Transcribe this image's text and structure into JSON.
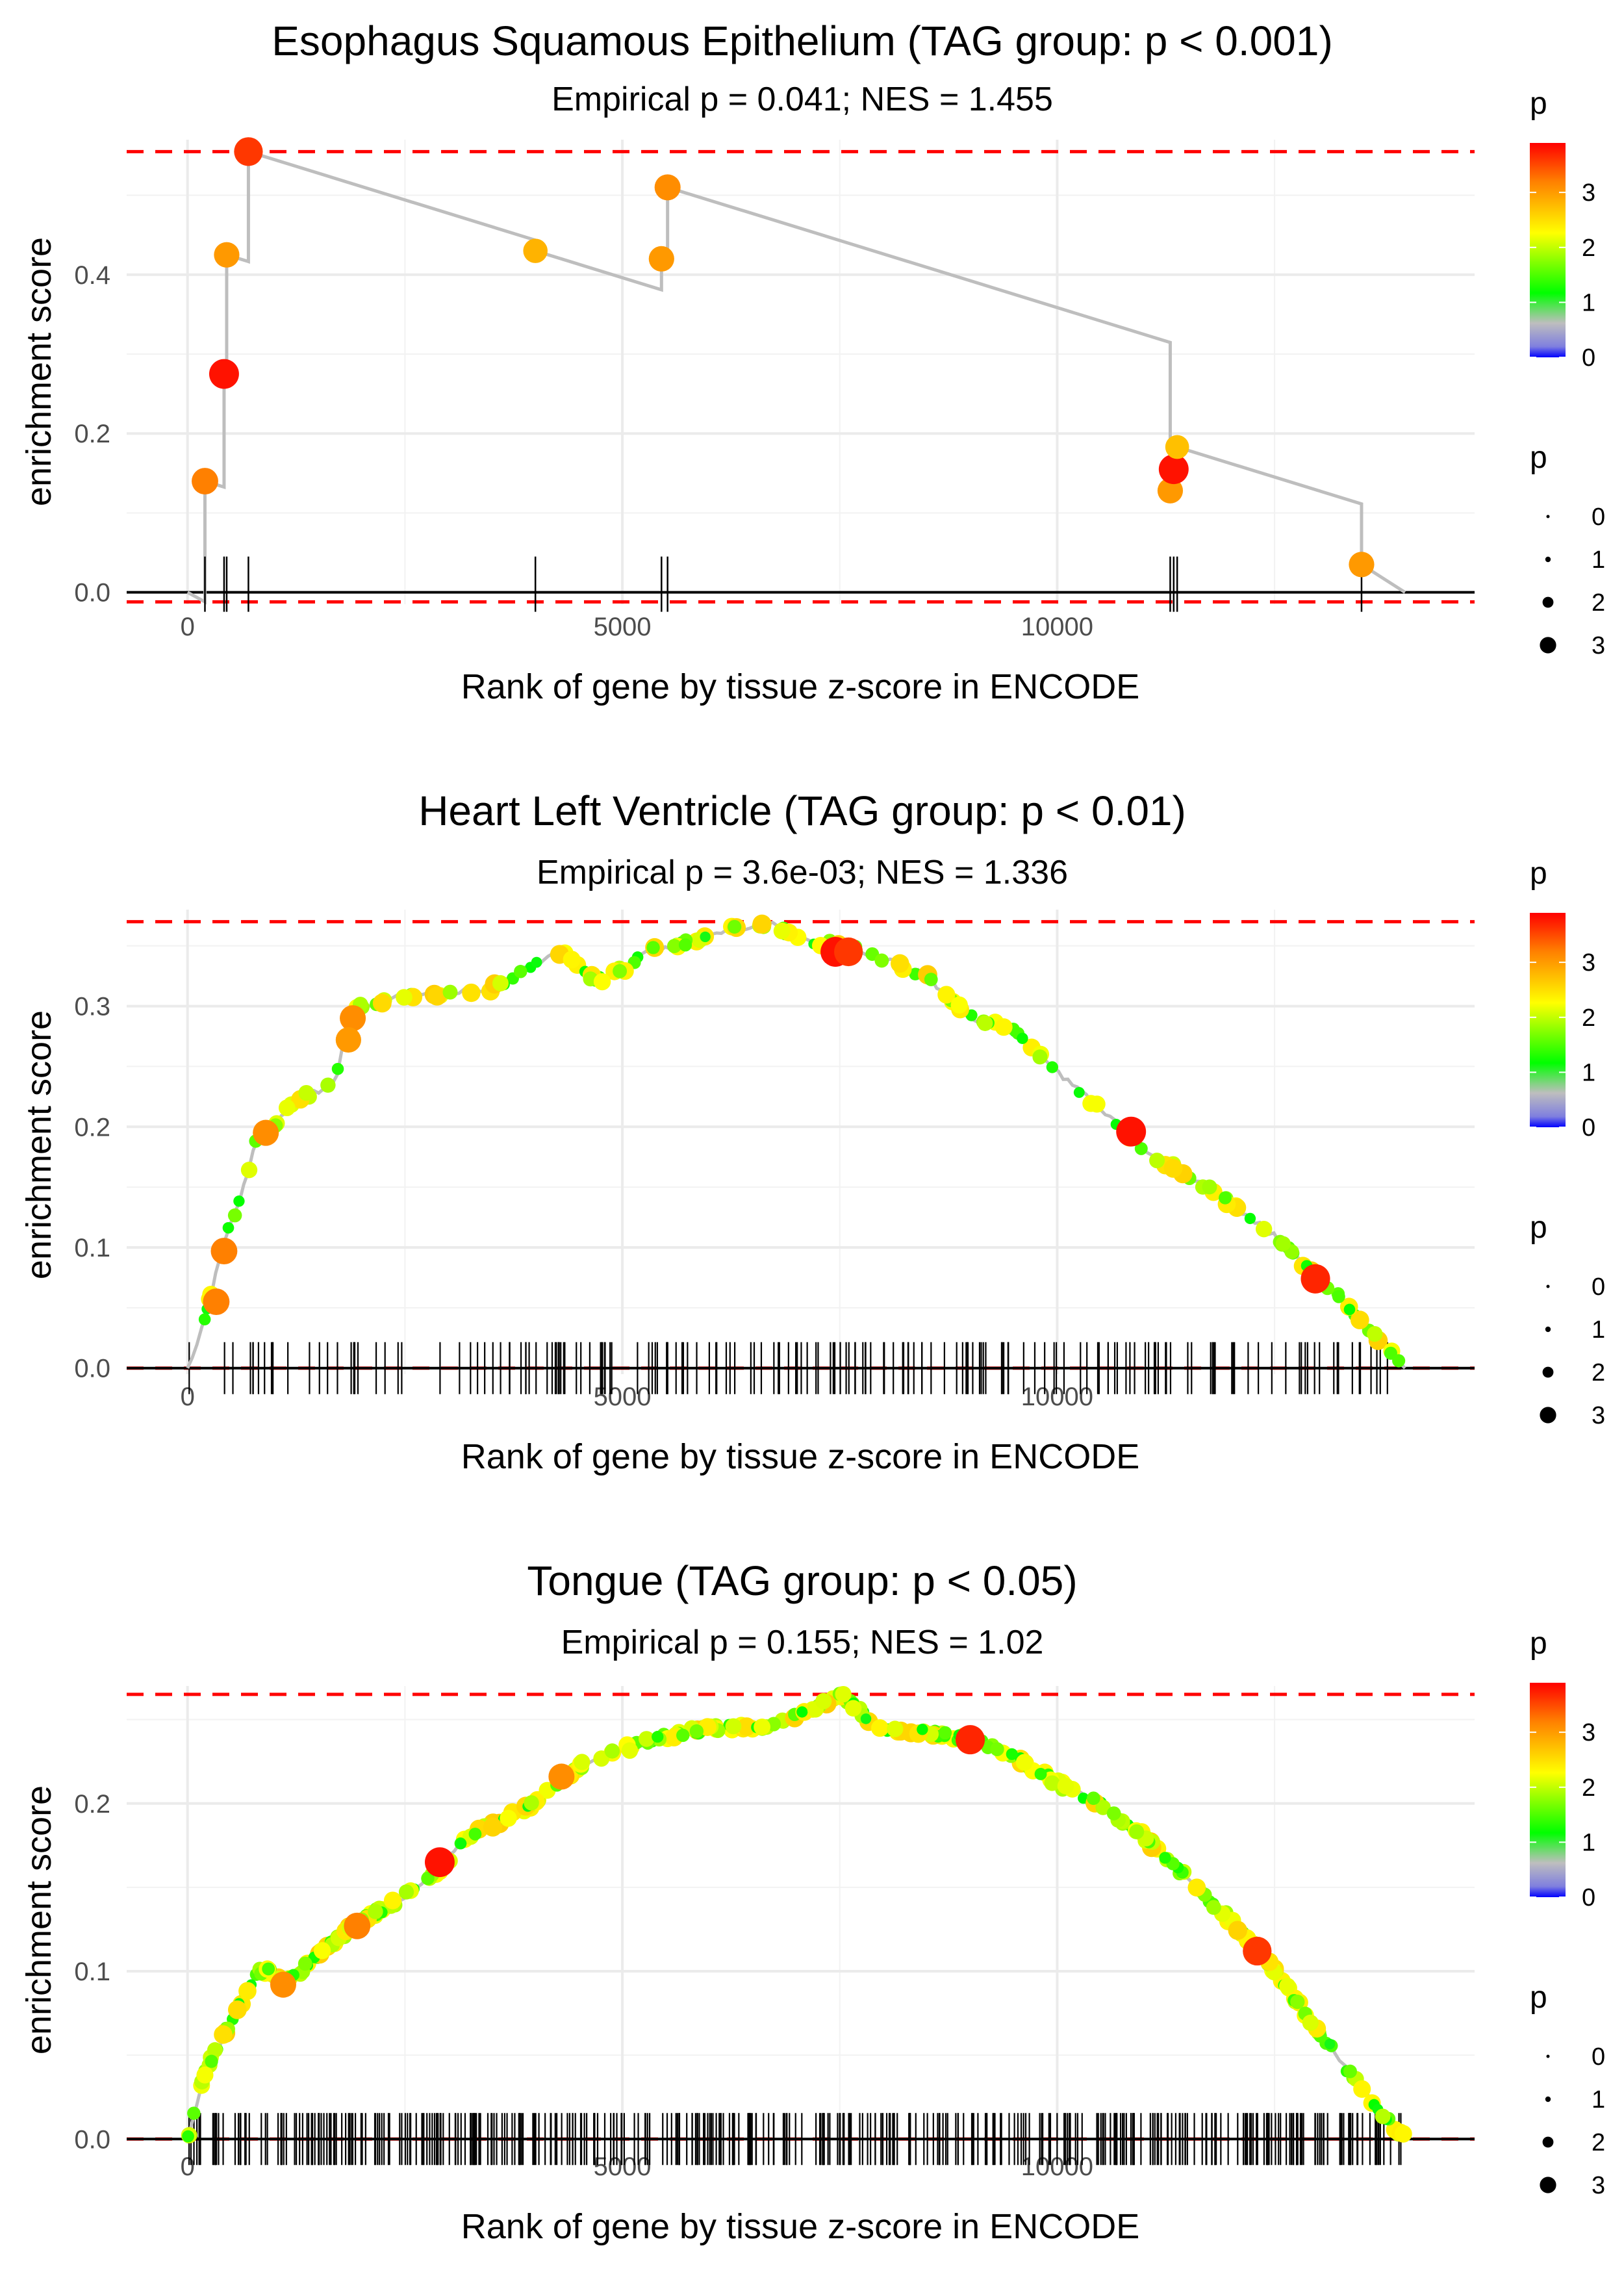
{
  "chart_data": [
    {
      "type": "scatter",
      "title": "Esophagus Squamous Epithelium (TAG group: p < 0.001)",
      "subtitle": "Empirical p = 0.041; NES = 1.455",
      "xlabel": "Rank of gene by tissue z-score in ENCODE",
      "ylabel": "enrichment score",
      "xlim": [
        -700,
        14800
      ],
      "ylim": [
        -0.015,
        0.57
      ],
      "xticks": [
        0,
        5000,
        10000
      ],
      "xtick_labels": [
        "0",
        "5000",
        "10000"
      ],
      "yticks": [
        0.0,
        0.2,
        0.4
      ],
      "ytick_labels": [
        "0.0",
        "0.2",
        "0.4"
      ],
      "max_es": 0.555,
      "min_es": -0.012,
      "hit_ranks": [
        200,
        420,
        450,
        700,
        4000,
        5450,
        5520,
        11300,
        11340,
        11380,
        13500
      ],
      "points": [
        {
          "x": 200,
          "y": 0.14,
          "p": 3.2
        },
        {
          "x": 420,
          "y": 0.275,
          "p": 3.8
        },
        {
          "x": 450,
          "y": 0.425,
          "p": 3.0
        },
        {
          "x": 700,
          "y": 0.555,
          "p": 3.6
        },
        {
          "x": 4000,
          "y": 0.43,
          "p": 2.8
        },
        {
          "x": 5450,
          "y": 0.42,
          "p": 3.0
        },
        {
          "x": 5520,
          "y": 0.51,
          "p": 3.1
        },
        {
          "x": 11300,
          "y": 0.128,
          "p": 3.0
        },
        {
          "x": 11340,
          "y": 0.155,
          "p": 3.8
        },
        {
          "x": 11380,
          "y": 0.183,
          "p": 2.7
        },
        {
          "x": 13500,
          "y": 0.035,
          "p": 3.0
        }
      ],
      "end_x": 14000
    },
    {
      "type": "scatter",
      "title": "Heart Left Ventricle (TAG group: p < 0.01)",
      "subtitle": "Empirical p = 3.6e-03; NES = 1.336",
      "xlabel": "Rank of gene by tissue z-score in ENCODE",
      "ylabel": "enrichment score",
      "xlim": [
        -700,
        14800
      ],
      "ylim": [
        -0.005,
        0.38
      ],
      "xticks": [
        0,
        5000,
        10000
      ],
      "xtick_labels": [
        "0",
        "5000",
        "10000"
      ],
      "yticks": [
        0.0,
        0.1,
        0.2,
        0.3
      ],
      "ytick_labels": [
        "0.0",
        "0.1",
        "0.2",
        "0.3"
      ],
      "max_es": 0.37,
      "min_es": 0.0,
      "curve": [
        [
          0,
          0
        ],
        [
          200,
          0.04
        ],
        [
          400,
          0.1
        ],
        [
          600,
          0.14
        ],
        [
          800,
          0.19
        ],
        [
          1000,
          0.2
        ],
        [
          1200,
          0.22
        ],
        [
          1500,
          0.23
        ],
        [
          1700,
          0.235
        ],
        [
          1850,
          0.29
        ],
        [
          2000,
          0.3
        ],
        [
          2500,
          0.31
        ],
        [
          3000,
          0.31
        ],
        [
          3500,
          0.315
        ],
        [
          4000,
          0.335
        ],
        [
          4300,
          0.345
        ],
        [
          4700,
          0.32
        ],
        [
          5000,
          0.33
        ],
        [
          5300,
          0.345
        ],
        [
          5600,
          0.35
        ],
        [
          6000,
          0.36
        ],
        [
          6400,
          0.365
        ],
        [
          6700,
          0.37
        ],
        [
          7000,
          0.355
        ],
        [
          7500,
          0.35
        ],
        [
          8000,
          0.34
        ],
        [
          8500,
          0.325
        ],
        [
          9000,
          0.29
        ],
        [
          9500,
          0.28
        ],
        [
          10000,
          0.245
        ],
        [
          10500,
          0.215
        ],
        [
          11000,
          0.18
        ],
        [
          11500,
          0.16
        ],
        [
          12000,
          0.135
        ],
        [
          12500,
          0.11
        ],
        [
          13000,
          0.075
        ],
        [
          13500,
          0.04
        ],
        [
          14000,
          0.0
        ]
      ],
      "highlights": [
        {
          "x": 7450,
          "y": 0.345,
          "p": 3.8
        },
        {
          "x": 7600,
          "y": 0.345,
          "p": 3.6
        },
        {
          "x": 10850,
          "y": 0.196,
          "p": 3.8
        },
        {
          "x": 12970,
          "y": 0.074,
          "p": 3.7
        },
        {
          "x": 1900,
          "y": 0.29,
          "p": 3.1
        },
        {
          "x": 1850,
          "y": 0.272,
          "p": 3.0
        },
        {
          "x": 900,
          "y": 0.195,
          "p": 3.1
        },
        {
          "x": 420,
          "y": 0.097,
          "p": 3.2
        },
        {
          "x": 330,
          "y": 0.055,
          "p": 3.2
        }
      ],
      "rug_count": 190,
      "end_x": 14000
    },
    {
      "type": "scatter",
      "title": "Tongue (TAG group: p < 0.05)",
      "subtitle": "Empirical p = 0.155; NES = 1.02",
      "xlabel": "Rank of gene by tissue z-score in ENCODE",
      "ylabel": "enrichment score",
      "xlim": [
        -700,
        14800
      ],
      "ylim": [
        -0.003,
        0.27
      ],
      "xticks": [
        0,
        5000,
        10000
      ],
      "xtick_labels": [
        "0",
        "5000",
        "10000"
      ],
      "yticks": [
        0.0,
        0.1,
        0.2
      ],
      "ytick_labels": [
        "0.0",
        "0.1",
        "0.2"
      ],
      "max_es": 0.265,
      "min_es": 0.0,
      "curve": [
        [
          0,
          0
        ],
        [
          200,
          0.04
        ],
        [
          400,
          0.06
        ],
        [
          600,
          0.08
        ],
        [
          800,
          0.1
        ],
        [
          1000,
          0.1
        ],
        [
          1100,
          0.092
        ],
        [
          1300,
          0.1
        ],
        [
          1600,
          0.115
        ],
        [
          2000,
          0.13
        ],
        [
          2500,
          0.145
        ],
        [
          2900,
          0.16
        ],
        [
          3200,
          0.18
        ],
        [
          3600,
          0.19
        ],
        [
          4000,
          0.2
        ],
        [
          4300,
          0.215
        ],
        [
          4600,
          0.225
        ],
        [
          5000,
          0.232
        ],
        [
          5500,
          0.24
        ],
        [
          6000,
          0.245
        ],
        [
          6500,
          0.245
        ],
        [
          7000,
          0.252
        ],
        [
          7500,
          0.265
        ],
        [
          7800,
          0.252
        ],
        [
          8000,
          0.243
        ],
        [
          8500,
          0.243
        ],
        [
          9000,
          0.238
        ],
        [
          9500,
          0.228
        ],
        [
          10000,
          0.212
        ],
        [
          10500,
          0.2
        ],
        [
          11000,
          0.18
        ],
        [
          11500,
          0.155
        ],
        [
          12000,
          0.13
        ],
        [
          12500,
          0.1
        ],
        [
          13000,
          0.065
        ],
        [
          13500,
          0.03
        ],
        [
          14000,
          0.0
        ]
      ],
      "highlights": [
        {
          "x": 2900,
          "y": 0.165,
          "p": 3.8
        },
        {
          "x": 9000,
          "y": 0.238,
          "p": 3.7
        },
        {
          "x": 12300,
          "y": 0.112,
          "p": 3.6
        },
        {
          "x": 1100,
          "y": 0.092,
          "p": 3.1
        },
        {
          "x": 1950,
          "y": 0.127,
          "p": 3.2
        },
        {
          "x": 4300,
          "y": 0.216,
          "p": 3.1
        }
      ],
      "rug_count": 420,
      "end_x": 14000
    }
  ],
  "legend": {
    "color_title": "p",
    "size_title": "p",
    "color_ticks": [
      "0",
      "1",
      "2",
      "3"
    ],
    "size_ticks": [
      "0",
      "1",
      "2",
      "3"
    ],
    "color_max": 3.9,
    "colors": {
      "red": "#ff0000",
      "orange": "#ff8000",
      "yellow": "#ffff00",
      "green": "#00ff00",
      "grey": "#bebebe",
      "blue": "#0000ff",
      "ref_line": "#ff0000",
      "path": "#bebebe",
      "grid": "#ebebeb"
    }
  }
}
